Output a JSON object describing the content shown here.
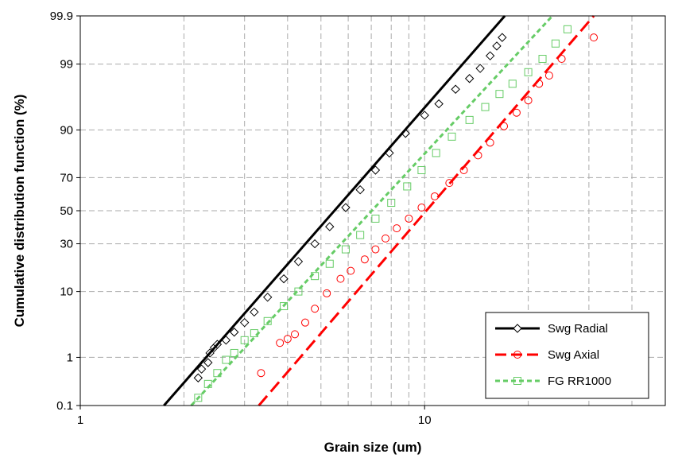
{
  "chart_data": {
    "type": "scatter",
    "title": "",
    "xlabel": "Grain size (um)",
    "ylabel": "Cumulative distribution function (%)",
    "x_scale": "log",
    "y_scale": "normal-probability",
    "xlim": [
      1,
      50
    ],
    "ylim": [
      0.1,
      99.9
    ],
    "grid": true,
    "legend_position": "bottom-right",
    "x_ticks": [
      "1",
      "10"
    ],
    "y_ticks": [
      {
        "value": 0.1,
        "label": "0.1"
      },
      {
        "value": 1,
        "label": "1"
      },
      {
        "value": 10,
        "label": "10"
      },
      {
        "value": 30,
        "label": "30"
      },
      {
        "value": 50,
        "label": "50"
      },
      {
        "value": 70,
        "label": "70"
      },
      {
        "value": 90,
        "label": "90"
      },
      {
        "value": 99,
        "label": "99"
      },
      {
        "value": 99.9,
        "label": "99.9"
      }
    ],
    "series": [
      {
        "name": "Swg Radial",
        "color": "#000000",
        "marker": "diamond",
        "line": "solid",
        "fit_line": [
          [
            1.75,
            0.1
          ],
          [
            17.1,
            99.9
          ]
        ],
        "points": [
          [
            2.2,
            0.4
          ],
          [
            2.25,
            0.6
          ],
          [
            2.35,
            0.8
          ],
          [
            2.38,
            1.2
          ],
          [
            2.45,
            1.5
          ],
          [
            2.5,
            1.7
          ],
          [
            2.65,
            2.0
          ],
          [
            2.8,
            2.7
          ],
          [
            3.0,
            3.8
          ],
          [
            3.2,
            5.4
          ],
          [
            3.5,
            8.5
          ],
          [
            3.9,
            14
          ],
          [
            4.3,
            21
          ],
          [
            4.8,
            30
          ],
          [
            5.3,
            40
          ],
          [
            5.9,
            52
          ],
          [
            6.5,
            63
          ],
          [
            7.2,
            74
          ],
          [
            7.9,
            82
          ],
          [
            8.8,
            89
          ],
          [
            10.0,
            93.5
          ],
          [
            11.0,
            95.5
          ],
          [
            12.3,
            97.3
          ],
          [
            13.5,
            98.2
          ],
          [
            14.5,
            98.8
          ],
          [
            15.5,
            99.3
          ],
          [
            16.2,
            99.55
          ],
          [
            16.8,
            99.7
          ]
        ]
      },
      {
        "name": "Swg Axial",
        "color": "#ff0000",
        "marker": "circle",
        "line": "dashed",
        "fit_line": [
          [
            3.3,
            0.1
          ],
          [
            31,
            99.9
          ]
        ],
        "points": [
          [
            3.35,
            0.5
          ],
          [
            3.8,
            1.8
          ],
          [
            4.0,
            2.1
          ],
          [
            4.2,
            2.5
          ],
          [
            4.5,
            3.8
          ],
          [
            4.8,
            6.0
          ],
          [
            5.2,
            9.5
          ],
          [
            5.7,
            14
          ],
          [
            6.1,
            17
          ],
          [
            6.7,
            22
          ],
          [
            7.2,
            27
          ],
          [
            7.7,
            33
          ],
          [
            8.3,
            39
          ],
          [
            9.0,
            45
          ],
          [
            9.8,
            52
          ],
          [
            10.7,
            59
          ],
          [
            11.8,
            67
          ],
          [
            13.0,
            74
          ],
          [
            14.3,
            81
          ],
          [
            15.5,
            86
          ],
          [
            17.0,
            91
          ],
          [
            18.5,
            94
          ],
          [
            20.0,
            96
          ],
          [
            21.5,
            97.8
          ],
          [
            23.0,
            98.4
          ],
          [
            25.0,
            99.2
          ],
          [
            31.0,
            99.7
          ]
        ]
      },
      {
        "name": "FG RR1000",
        "color": "#66cc66",
        "marker": "square",
        "line": "dashed",
        "fit_line": [
          [
            2.1,
            0.1
          ],
          [
            23.5,
            99.9
          ]
        ],
        "points": [
          [
            2.2,
            0.15
          ],
          [
            2.35,
            0.3
          ],
          [
            2.5,
            0.5
          ],
          [
            2.65,
            0.9
          ],
          [
            2.8,
            1.2
          ],
          [
            3.0,
            2.0
          ],
          [
            3.2,
            2.6
          ],
          [
            3.5,
            4.0
          ],
          [
            3.9,
            6.5
          ],
          [
            4.3,
            10
          ],
          [
            4.8,
            15
          ],
          [
            5.3,
            20
          ],
          [
            5.9,
            27
          ],
          [
            6.5,
            35
          ],
          [
            7.2,
            45
          ],
          [
            8.0,
            55
          ],
          [
            8.9,
            65
          ],
          [
            9.8,
            74
          ],
          [
            10.8,
            82
          ],
          [
            12.0,
            88
          ],
          [
            13.5,
            92.5
          ],
          [
            15.0,
            95
          ],
          [
            16.5,
            96.8
          ],
          [
            18.0,
            97.8
          ],
          [
            20.0,
            98.6
          ],
          [
            22.0,
            99.2
          ],
          [
            24.0,
            99.6
          ],
          [
            26.0,
            99.8
          ]
        ]
      }
    ]
  }
}
